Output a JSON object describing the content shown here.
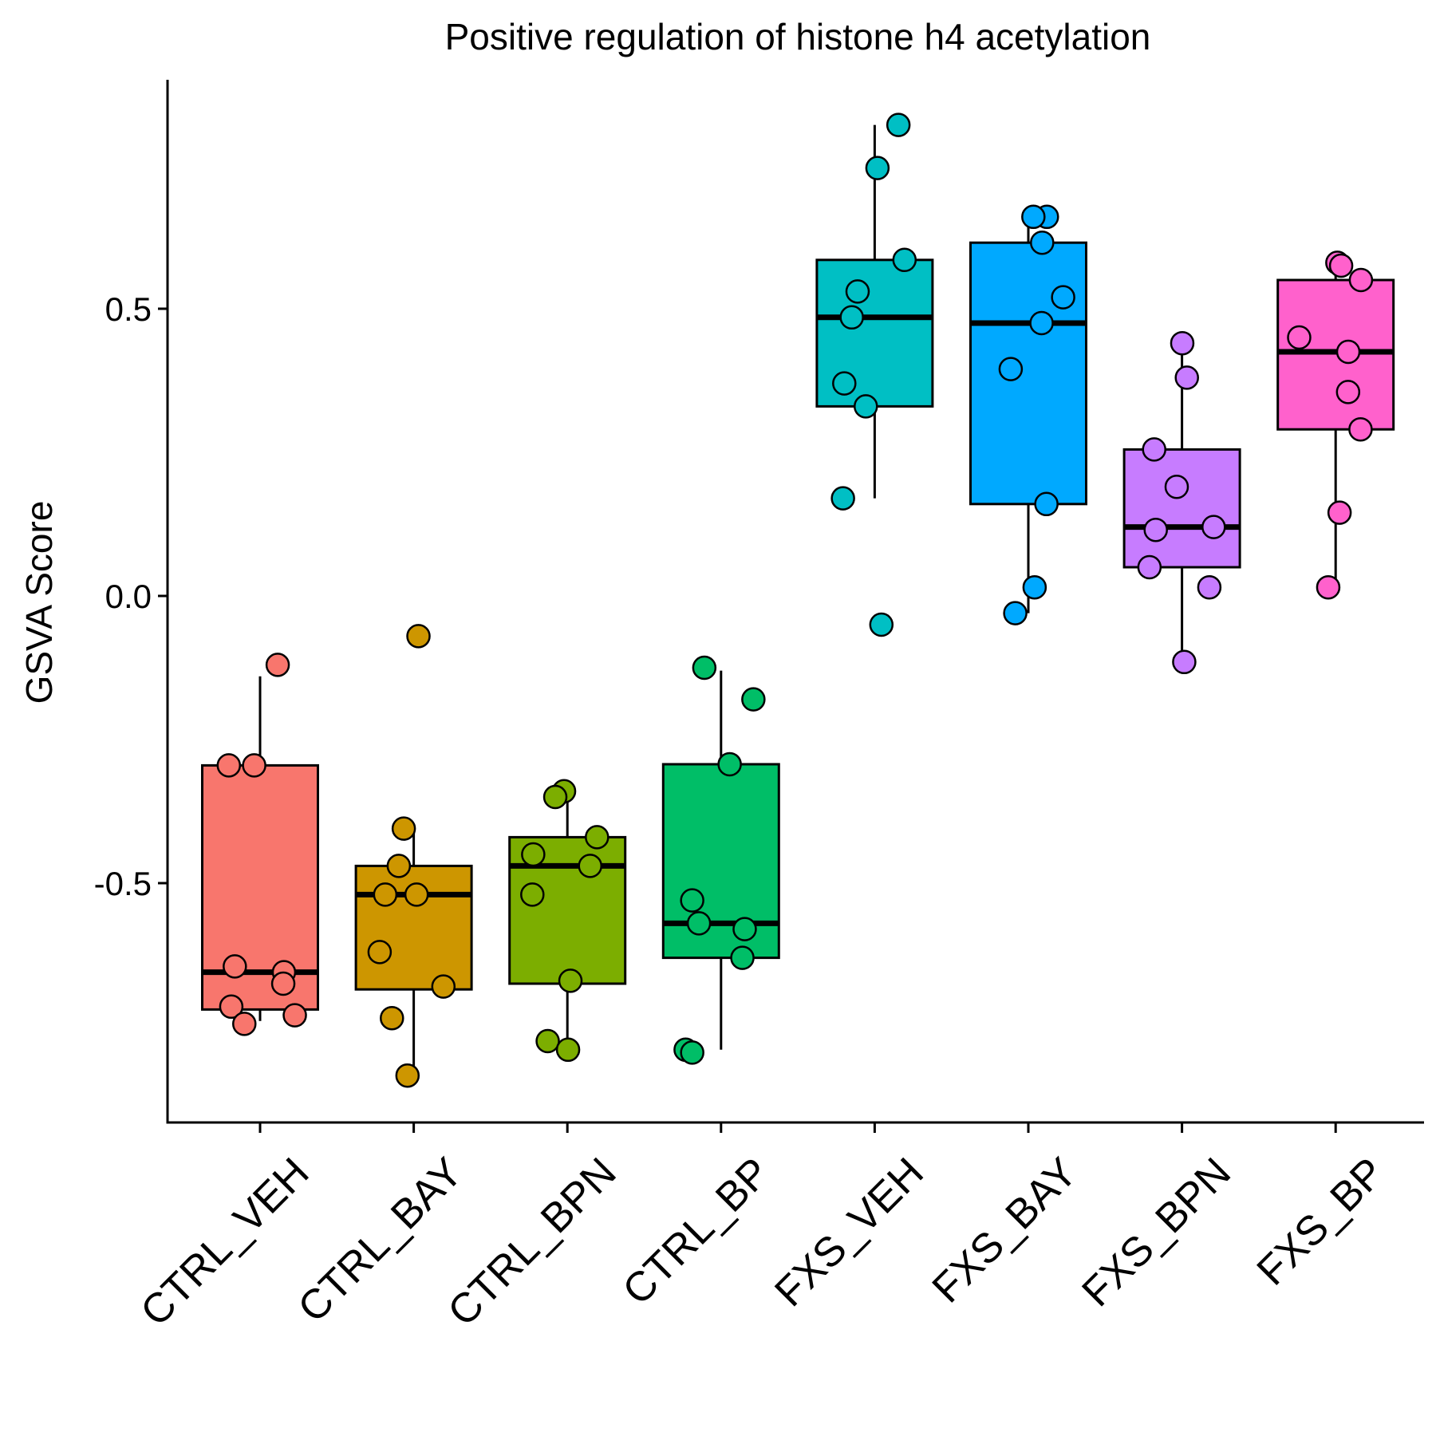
{
  "chart_data": {
    "type": "box",
    "title": "Positive regulation of histone h4 acetylation",
    "xlabel": "",
    "ylabel": "GSVA Score",
    "ylim": [
      -0.92,
      0.86
    ],
    "yticks": [
      -0.5,
      0.0,
      0.5
    ],
    "ytick_labels": [
      "-0.5",
      "0.0",
      "0.5"
    ],
    "grid": false,
    "legend": "none",
    "groups": [
      {
        "name": "CTRL_VEH",
        "color": "#F8766D",
        "stats": {
          "q1": -0.72,
          "median": -0.655,
          "q3": -0.295,
          "whisker_low": -0.74,
          "whisker_high": -0.14
        },
        "points": [
          -0.12,
          -0.295,
          -0.295,
          -0.655,
          -0.645,
          -0.675,
          -0.715,
          -0.73,
          -0.745
        ]
      },
      {
        "name": "CTRL_BAY",
        "color": "#CD9600",
        "stats": {
          "q1": -0.685,
          "median": -0.52,
          "q3": -0.47,
          "whisker_low": -0.835,
          "whisker_high": -0.4
        },
        "points": [
          -0.07,
          -0.405,
          -0.47,
          -0.52,
          -0.52,
          -0.62,
          -0.68,
          -0.735,
          -0.835
        ]
      },
      {
        "name": "CTRL_BPN",
        "color": "#7CAE00",
        "stats": {
          "q1": -0.675,
          "median": -0.47,
          "q3": -0.42,
          "whisker_low": -0.79,
          "whisker_high": -0.35
        },
        "points": [
          -0.34,
          -0.35,
          -0.42,
          -0.45,
          -0.47,
          -0.52,
          -0.67,
          -0.775,
          -0.79
        ]
      },
      {
        "name": "CTRL_BP",
        "color": "#00BE67",
        "stats": {
          "q1": -0.63,
          "median": -0.57,
          "q3": -0.293,
          "whisker_low": -0.79,
          "whisker_high": -0.13
        },
        "points": [
          -0.125,
          -0.18,
          -0.293,
          -0.53,
          -0.57,
          -0.58,
          -0.63,
          -0.79,
          -0.795
        ]
      },
      {
        "name": "FXS_VEH",
        "color": "#00BFC4",
        "stats": {
          "q1": 0.33,
          "median": 0.485,
          "q3": 0.585,
          "whisker_low": 0.17,
          "whisker_high": 0.82
        },
        "points": [
          0.82,
          0.745,
          0.585,
          0.53,
          0.485,
          0.37,
          0.33,
          0.17,
          -0.05
        ]
      },
      {
        "name": "FXS_BAY",
        "color": "#00A9FF",
        "stats": {
          "q1": 0.16,
          "median": 0.475,
          "q3": 0.615,
          "whisker_low": -0.03,
          "whisker_high": 0.66
        },
        "points": [
          0.66,
          0.66,
          0.615,
          0.52,
          0.475,
          0.395,
          0.16,
          0.015,
          -0.03
        ]
      },
      {
        "name": "FXS_BPN",
        "color": "#C77CFF",
        "stats": {
          "q1": 0.05,
          "median": 0.12,
          "q3": 0.255,
          "whisker_low": -0.115,
          "whisker_high": 0.44
        },
        "points": [
          0.44,
          0.38,
          0.255,
          0.19,
          0.12,
          0.115,
          0.05,
          0.015,
          -0.115
        ]
      },
      {
        "name": "FXS_BP",
        "color": "#FF61CC",
        "stats": {
          "q1": 0.29,
          "median": 0.425,
          "q3": 0.55,
          "whisker_low": 0.015,
          "whisker_high": 0.575
        },
        "points": [
          0.58,
          0.575,
          0.55,
          0.45,
          0.425,
          0.355,
          0.29,
          0.145,
          0.015
        ]
      }
    ]
  }
}
